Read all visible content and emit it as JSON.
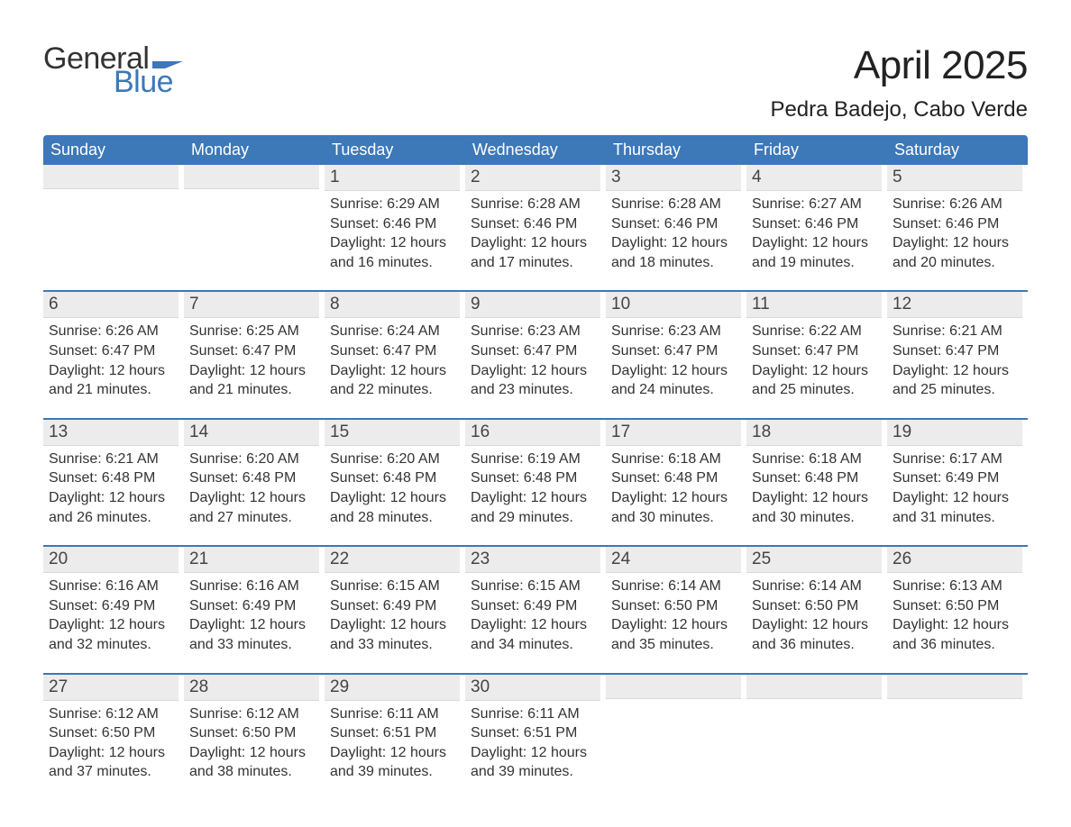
{
  "logo": {
    "word1": "General",
    "word2": "Blue",
    "text_color": "#333333",
    "accent_color": "#3d78b8"
  },
  "header": {
    "month_title": "April 2025",
    "location": "Pedra Badejo, Cabo Verde"
  },
  "styling": {
    "page_bg": "#ffffff",
    "header_bar_bg": "#3d78b8",
    "header_bar_text": "#ffffff",
    "daynum_band_bg": "#ececec",
    "week_divider_color": "#3d78b8",
    "body_text_color": "#333333",
    "month_title_fontsize": 44,
    "location_fontsize": 24,
    "weekday_fontsize": 18,
    "daynum_fontsize": 19,
    "cell_fontsize": 16
  },
  "labels": {
    "sunrise": "Sunrise:",
    "sunset": "Sunset:",
    "daylight": "Daylight:"
  },
  "weekdays": [
    "Sunday",
    "Monday",
    "Tuesday",
    "Wednesday",
    "Thursday",
    "Friday",
    "Saturday"
  ],
  "weeks": [
    [
      null,
      null,
      {
        "n": "1",
        "sunrise": "6:29 AM",
        "sunset": "6:46 PM",
        "daylight1": "12 hours",
        "daylight2": "and 16 minutes."
      },
      {
        "n": "2",
        "sunrise": "6:28 AM",
        "sunset": "6:46 PM",
        "daylight1": "12 hours",
        "daylight2": "and 17 minutes."
      },
      {
        "n": "3",
        "sunrise": "6:28 AM",
        "sunset": "6:46 PM",
        "daylight1": "12 hours",
        "daylight2": "and 18 minutes."
      },
      {
        "n": "4",
        "sunrise": "6:27 AM",
        "sunset": "6:46 PM",
        "daylight1": "12 hours",
        "daylight2": "and 19 minutes."
      },
      {
        "n": "5",
        "sunrise": "6:26 AM",
        "sunset": "6:46 PM",
        "daylight1": "12 hours",
        "daylight2": "and 20 minutes."
      }
    ],
    [
      {
        "n": "6",
        "sunrise": "6:26 AM",
        "sunset": "6:47 PM",
        "daylight1": "12 hours",
        "daylight2": "and 21 minutes."
      },
      {
        "n": "7",
        "sunrise": "6:25 AM",
        "sunset": "6:47 PM",
        "daylight1": "12 hours",
        "daylight2": "and 21 minutes."
      },
      {
        "n": "8",
        "sunrise": "6:24 AM",
        "sunset": "6:47 PM",
        "daylight1": "12 hours",
        "daylight2": "and 22 minutes."
      },
      {
        "n": "9",
        "sunrise": "6:23 AM",
        "sunset": "6:47 PM",
        "daylight1": "12 hours",
        "daylight2": "and 23 minutes."
      },
      {
        "n": "10",
        "sunrise": "6:23 AM",
        "sunset": "6:47 PM",
        "daylight1": "12 hours",
        "daylight2": "and 24 minutes."
      },
      {
        "n": "11",
        "sunrise": "6:22 AM",
        "sunset": "6:47 PM",
        "daylight1": "12 hours",
        "daylight2": "and 25 minutes."
      },
      {
        "n": "12",
        "sunrise": "6:21 AM",
        "sunset": "6:47 PM",
        "daylight1": "12 hours",
        "daylight2": "and 25 minutes."
      }
    ],
    [
      {
        "n": "13",
        "sunrise": "6:21 AM",
        "sunset": "6:48 PM",
        "daylight1": "12 hours",
        "daylight2": "and 26 minutes."
      },
      {
        "n": "14",
        "sunrise": "6:20 AM",
        "sunset": "6:48 PM",
        "daylight1": "12 hours",
        "daylight2": "and 27 minutes."
      },
      {
        "n": "15",
        "sunrise": "6:20 AM",
        "sunset": "6:48 PM",
        "daylight1": "12 hours",
        "daylight2": "and 28 minutes."
      },
      {
        "n": "16",
        "sunrise": "6:19 AM",
        "sunset": "6:48 PM",
        "daylight1": "12 hours",
        "daylight2": "and 29 minutes."
      },
      {
        "n": "17",
        "sunrise": "6:18 AM",
        "sunset": "6:48 PM",
        "daylight1": "12 hours",
        "daylight2": "and 30 minutes."
      },
      {
        "n": "18",
        "sunrise": "6:18 AM",
        "sunset": "6:48 PM",
        "daylight1": "12 hours",
        "daylight2": "and 30 minutes."
      },
      {
        "n": "19",
        "sunrise": "6:17 AM",
        "sunset": "6:49 PM",
        "daylight1": "12 hours",
        "daylight2": "and 31 minutes."
      }
    ],
    [
      {
        "n": "20",
        "sunrise": "6:16 AM",
        "sunset": "6:49 PM",
        "daylight1": "12 hours",
        "daylight2": "and 32 minutes."
      },
      {
        "n": "21",
        "sunrise": "6:16 AM",
        "sunset": "6:49 PM",
        "daylight1": "12 hours",
        "daylight2": "and 33 minutes."
      },
      {
        "n": "22",
        "sunrise": "6:15 AM",
        "sunset": "6:49 PM",
        "daylight1": "12 hours",
        "daylight2": "and 33 minutes."
      },
      {
        "n": "23",
        "sunrise": "6:15 AM",
        "sunset": "6:49 PM",
        "daylight1": "12 hours",
        "daylight2": "and 34 minutes."
      },
      {
        "n": "24",
        "sunrise": "6:14 AM",
        "sunset": "6:50 PM",
        "daylight1": "12 hours",
        "daylight2": "and 35 minutes."
      },
      {
        "n": "25",
        "sunrise": "6:14 AM",
        "sunset": "6:50 PM",
        "daylight1": "12 hours",
        "daylight2": "and 36 minutes."
      },
      {
        "n": "26",
        "sunrise": "6:13 AM",
        "sunset": "6:50 PM",
        "daylight1": "12 hours",
        "daylight2": "and 36 minutes."
      }
    ],
    [
      {
        "n": "27",
        "sunrise": "6:12 AM",
        "sunset": "6:50 PM",
        "daylight1": "12 hours",
        "daylight2": "and 37 minutes."
      },
      {
        "n": "28",
        "sunrise": "6:12 AM",
        "sunset": "6:50 PM",
        "daylight1": "12 hours",
        "daylight2": "and 38 minutes."
      },
      {
        "n": "29",
        "sunrise": "6:11 AM",
        "sunset": "6:51 PM",
        "daylight1": "12 hours",
        "daylight2": "and 39 minutes."
      },
      {
        "n": "30",
        "sunrise": "6:11 AM",
        "sunset": "6:51 PM",
        "daylight1": "12 hours",
        "daylight2": "and 39 minutes."
      },
      null,
      null,
      null
    ]
  ]
}
